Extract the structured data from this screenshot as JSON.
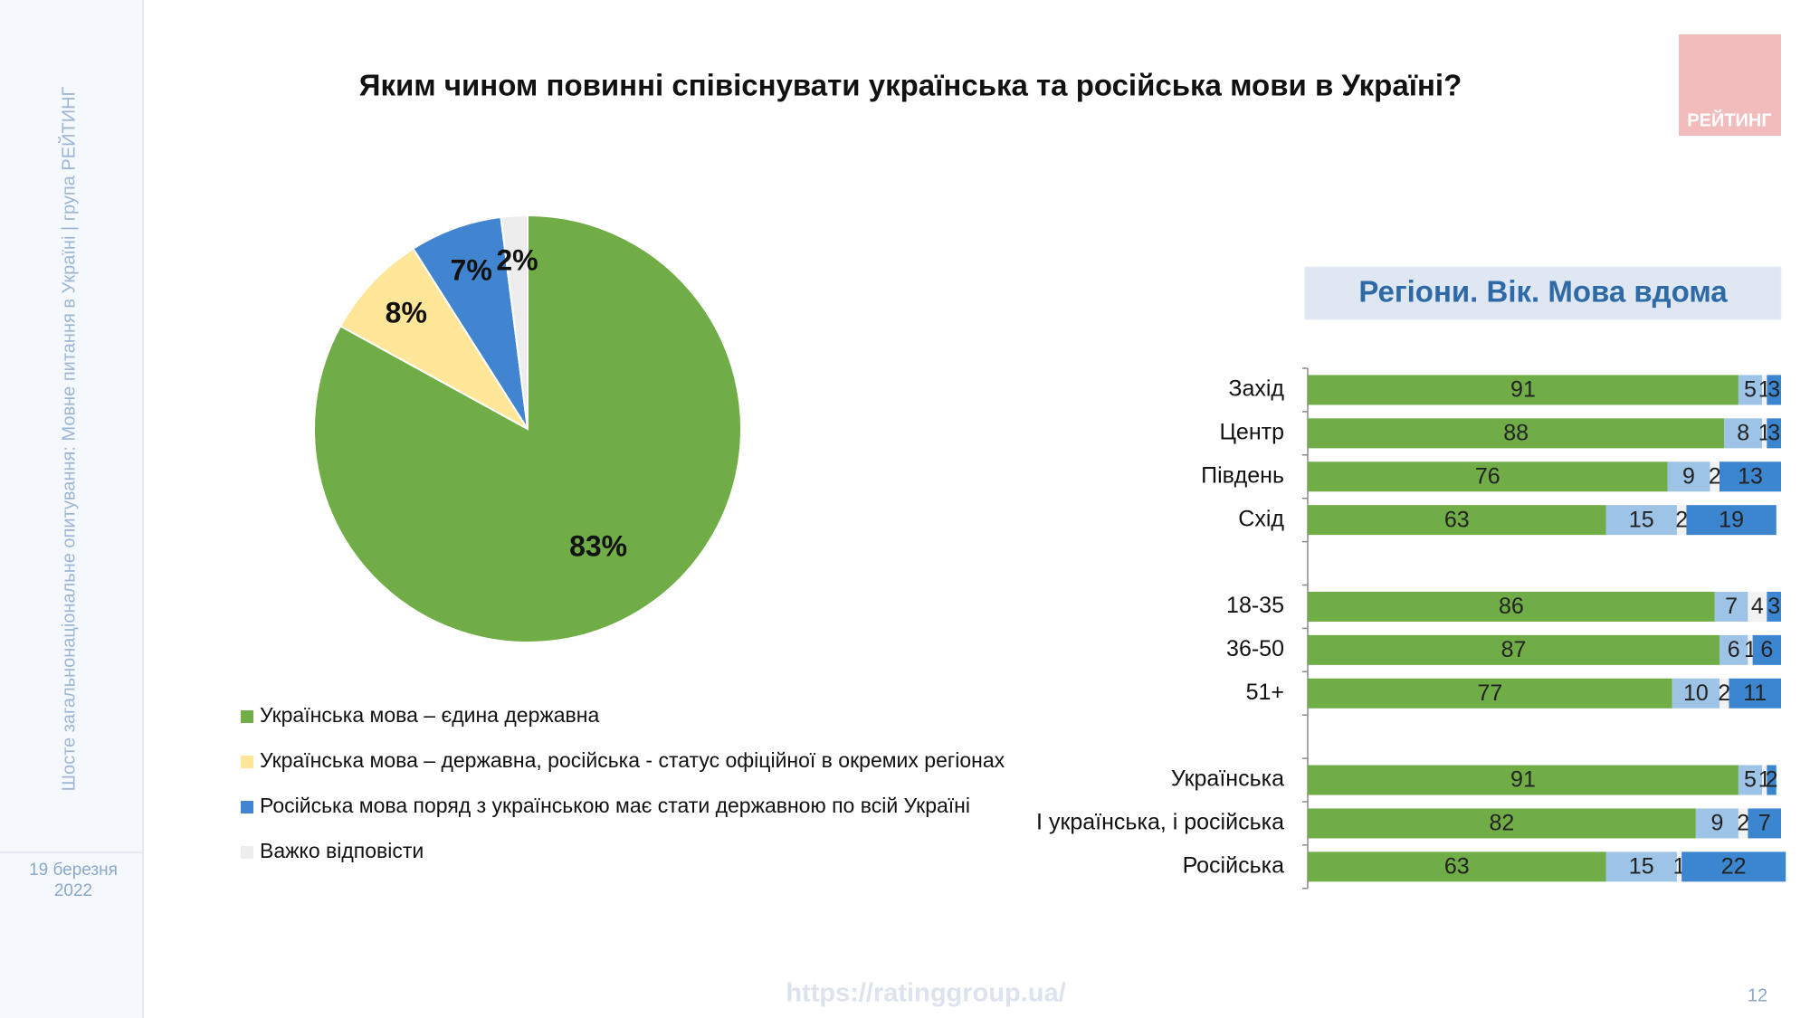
{
  "slide": {
    "title": "Яким чином повинні співіснувати українська та російська мови в Україні?",
    "sidebar": "Шосте загальнонаціональне опитування: Мовне питання в Україні | група РЕЙТИНГ",
    "date_day": "19 березня",
    "date_year": "2022",
    "logo": "РЕЙТИНГ",
    "url": "https://ratinggroup.ua/",
    "page": "12"
  },
  "chart_data": [
    {
      "type": "pie",
      "categories": [
        "Українська мова – єдина державна",
        "Українська мова – державна, російська - статус офіційної в окремих регіонах",
        "Російська мова поряд з українською має стати державною по всій Україні",
        "Важко відповісти"
      ],
      "values": [
        83,
        8,
        7,
        2
      ],
      "value_labels": [
        "83%",
        "8%",
        "7%",
        "2%"
      ],
      "colors": [
        "#70ad47",
        "#ffe699",
        "#4185d0",
        "#ededed"
      ]
    },
    {
      "type": "bar",
      "orientation": "horizontal",
      "stacked": true,
      "title": "Регіони. Вік. Мова вдома",
      "categories": [
        "Захід",
        "Центр",
        "Південь",
        "Схід",
        null,
        "18-35",
        "36-50",
        "51+",
        null,
        "Українська",
        "І українська, і російська",
        "Російська"
      ],
      "xlim": [
        0,
        100
      ],
      "series": [
        {
          "color": "#70ad47",
          "values": [
            91,
            88,
            76,
            63,
            null,
            86,
            87,
            77,
            null,
            91,
            82,
            63
          ]
        },
        {
          "color": "#9dc3e6",
          "values": [
            5,
            8,
            9,
            15,
            null,
            7,
            6,
            10,
            null,
            5,
            9,
            15
          ]
        },
        {
          "color": "#f2f2f2",
          "values": [
            1,
            1,
            2,
            2,
            null,
            4,
            1,
            2,
            null,
            1,
            2,
            1
          ]
        },
        {
          "color": "#3c86d0",
          "values": [
            3,
            3,
            13,
            19,
            null,
            3,
            6,
            11,
            null,
            2,
            7,
            22
          ]
        }
      ]
    }
  ]
}
